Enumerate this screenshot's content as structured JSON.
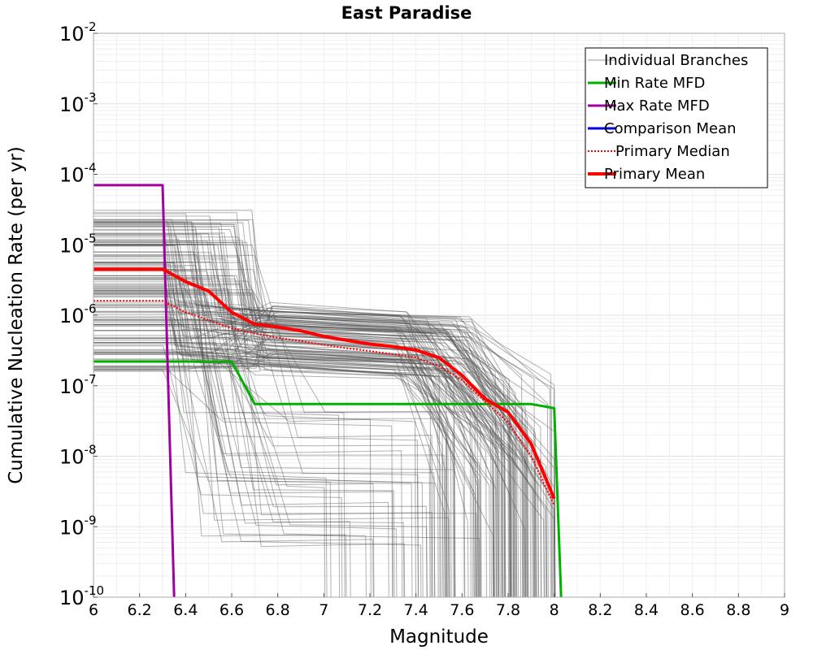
{
  "chart_data": {
    "type": "line",
    "title": "East Paradise",
    "xlabel": "Magnitude",
    "ylabel": "Cumulative Nucleation Rate (per yr)",
    "xlim": [
      6,
      9
    ],
    "ylim": [
      1e-10,
      0.01
    ],
    "yscale": "log",
    "grid": true,
    "legend_position": "top-right",
    "x_ticks": [
      "6",
      "6.2",
      "6.4",
      "6.6",
      "6.8",
      "7",
      "7.2",
      "7.4",
      "7.6",
      "7.8",
      "8",
      "8.2",
      "8.4",
      "8.6",
      "8.8",
      "9"
    ],
    "y_ticks": [
      {
        "value": 1e-10,
        "base": "10",
        "exp": "-10"
      },
      {
        "value": 1e-09,
        "base": "10",
        "exp": "-9"
      },
      {
        "value": 1e-08,
        "base": "10",
        "exp": "-8"
      },
      {
        "value": 1e-07,
        "base": "10",
        "exp": "-7"
      },
      {
        "value": 1e-06,
        "base": "10",
        "exp": "-6"
      },
      {
        "value": 1e-05,
        "base": "10",
        "exp": "-5"
      },
      {
        "value": 0.0001,
        "base": "10",
        "exp": "-4"
      },
      {
        "value": 0.001,
        "base": "10",
        "exp": "-3"
      },
      {
        "value": 0.01,
        "base": "10",
        "exp": "-2"
      }
    ],
    "series": [
      {
        "name": "Individual Branches",
        "color": "#555555",
        "style": "thin-many"
      },
      {
        "name": "Min Rate MFD",
        "color": "#00b000",
        "style": "solid",
        "x": [
          6.0,
          6.6,
          6.7,
          7.9,
          8.0,
          8.03
        ],
        "y": [
          2.2e-07,
          2.2e-07,
          5.5e-08,
          5.5e-08,
          4.8e-08,
          1e-10
        ]
      },
      {
        "name": "Max Rate MFD",
        "color": "#a000a0",
        "style": "solid",
        "x": [
          6.0,
          6.3,
          6.35
        ],
        "y": [
          7e-05,
          7e-05,
          1e-10
        ]
      },
      {
        "name": "Comparison Mean",
        "color": "#0000e0",
        "style": "solid",
        "x": [],
        "y": []
      },
      {
        "name": "Primary Median",
        "color": "#ff0000",
        "style": "dotted",
        "x": [
          6.0,
          6.3,
          6.4,
          6.5,
          6.6,
          6.7,
          6.8,
          6.9,
          7.0,
          7.1,
          7.2,
          7.3,
          7.4,
          7.5,
          7.6,
          7.7,
          7.8,
          7.9,
          8.0
        ],
        "y": [
          1.6e-06,
          1.6e-06,
          1.1e-06,
          8.5e-07,
          6.5e-07,
          5.5e-07,
          4.8e-07,
          4.3e-07,
          3.8e-07,
          3.4e-07,
          3.1e-07,
          2.8e-07,
          2.5e-07,
          1.9e-07,
          1.2e-07,
          6e-08,
          3e-08,
          1e-08,
          2e-09
        ]
      },
      {
        "name": "Primary Mean",
        "color": "#ff0000",
        "style": "thick",
        "x": [
          6.0,
          6.3,
          6.4,
          6.5,
          6.6,
          6.7,
          6.8,
          6.9,
          7.0,
          7.1,
          7.2,
          7.3,
          7.4,
          7.5,
          7.6,
          7.7,
          7.8,
          7.9,
          8.0
        ],
        "y": [
          4.5e-06,
          4.5e-06,
          3e-06,
          2.2e-06,
          1.1e-06,
          7.5e-07,
          6.8e-07,
          6e-07,
          5e-07,
          4.4e-07,
          3.9e-07,
          3.6e-07,
          3.2e-07,
          2.5e-07,
          1.4e-07,
          6.5e-08,
          4.2e-08,
          1.5e-08,
          2.5e-09
        ]
      }
    ]
  }
}
